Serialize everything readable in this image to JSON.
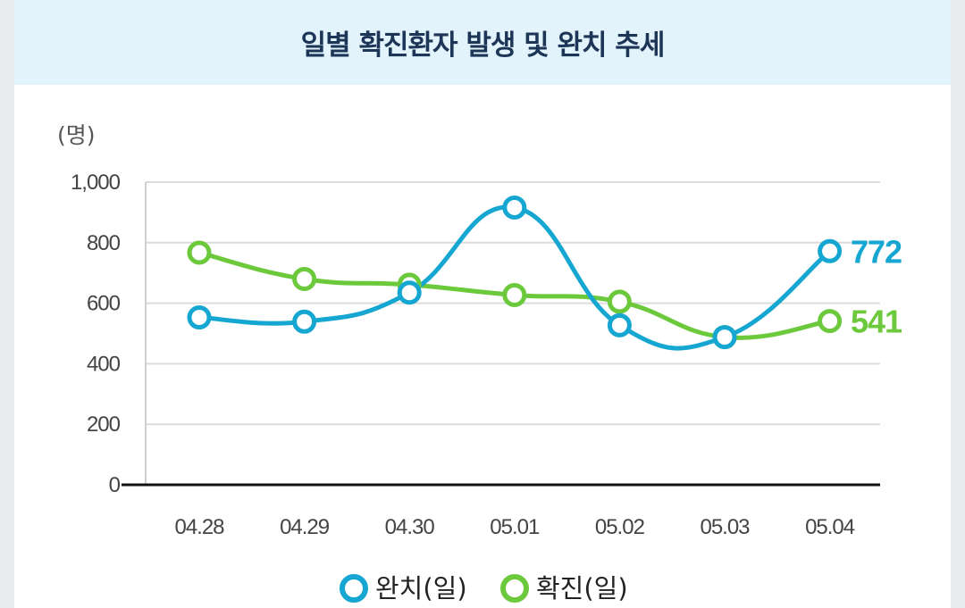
{
  "chart_data": {
    "type": "line",
    "title": "일별 확진환자 발생 및 완치 추세",
    "unit_label": "(명)",
    "categories": [
      "04.28",
      "04.29",
      "04.30",
      "05.01",
      "05.02",
      "05.03",
      "05.04"
    ],
    "y_ticks": [
      "0",
      "200",
      "400",
      "600",
      "800",
      "1,000"
    ],
    "ylim": [
      0,
      1000
    ],
    "series": [
      {
        "name": "완치(일)",
        "color": "#15a6d1",
        "values": [
          553,
          539,
          635,
          916,
          527,
          488,
          772
        ],
        "end_label": "772"
      },
      {
        "name": "확진(일)",
        "color": "#6cc93c",
        "values": [
          767,
          680,
          661,
          627,
          605,
          488,
          541
        ],
        "end_label": "541"
      }
    ],
    "grid": true,
    "legend": "bottom-center"
  }
}
